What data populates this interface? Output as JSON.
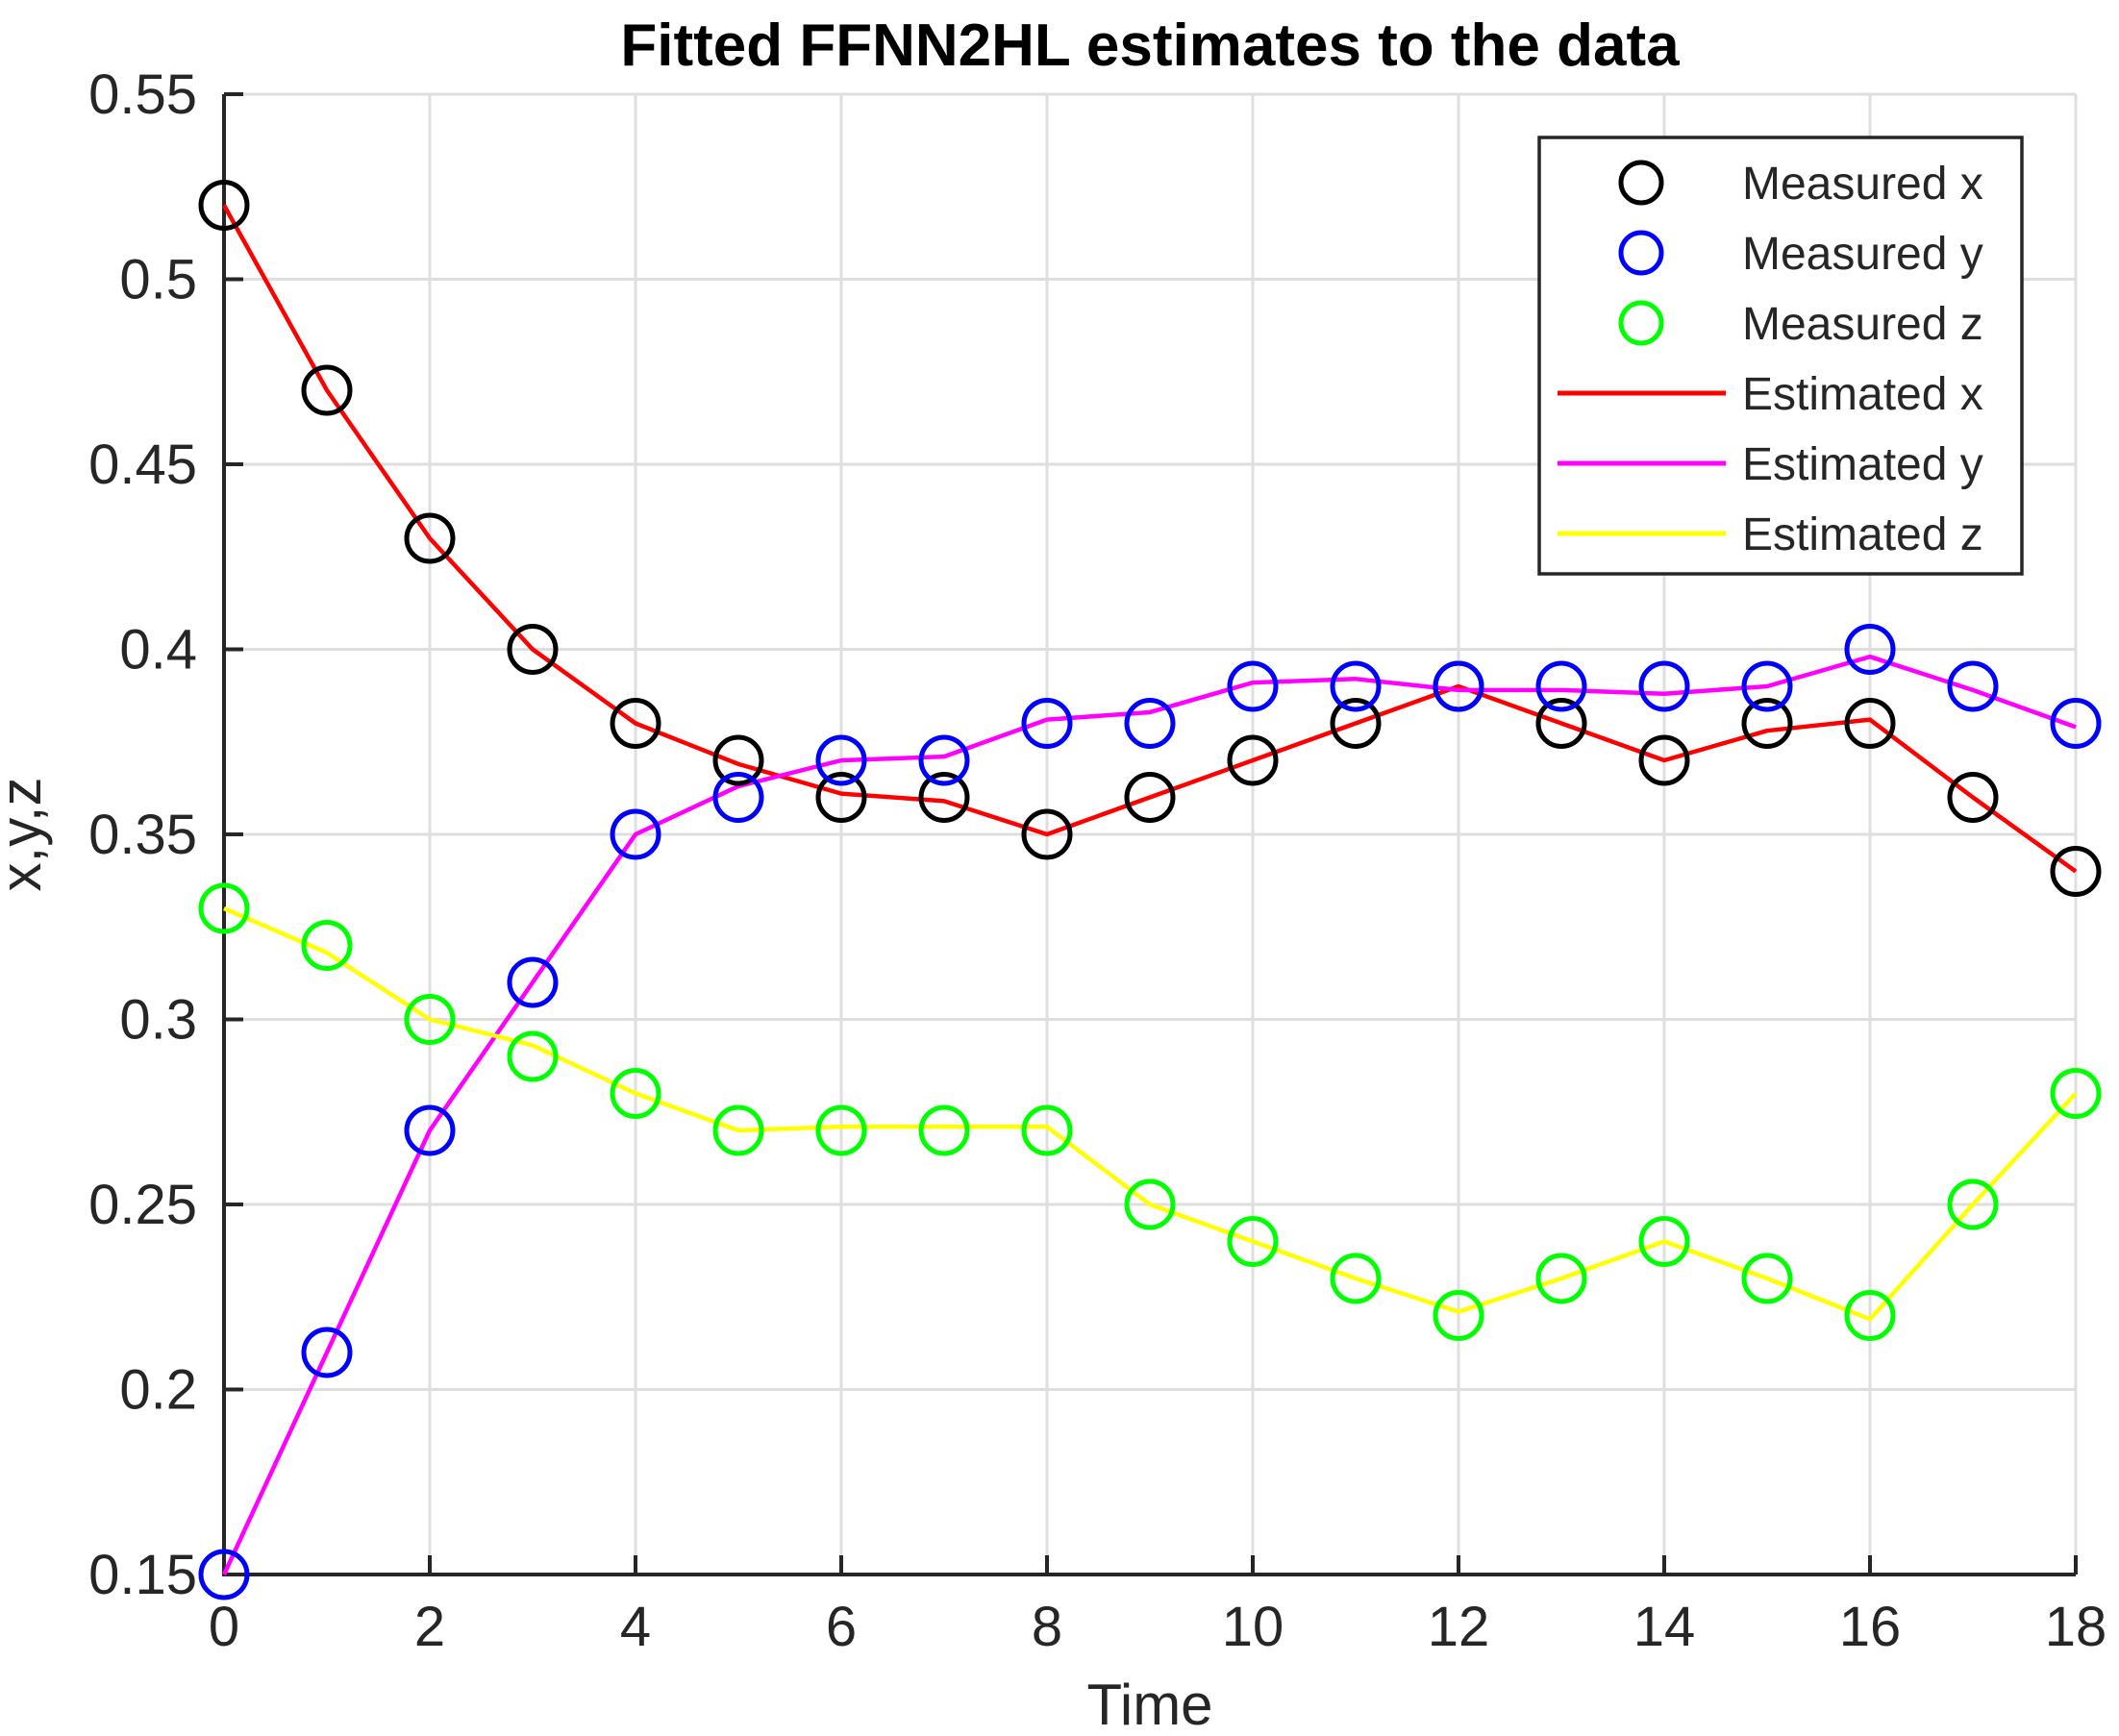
{
  "title": "Fitted FFNN2HL estimates to the data",
  "colors": {
    "background": "#FFFFFF",
    "grid": "#DEDEDE",
    "axis": "#262626",
    "text": "#262626",
    "measured_x": "#000000",
    "measured_y": "#0000FF",
    "measured_z": "#00FF00",
    "estimated_x": "#FF0000",
    "estimated_y": "#FF00FF",
    "estimated_z": "#FFFF00"
  },
  "legend": {
    "position": "northeast",
    "items": [
      {
        "label": "Measured x",
        "swatch": "circle",
        "color": "#000000"
      },
      {
        "label": "Measured y",
        "swatch": "circle",
        "color": "#0000FF"
      },
      {
        "label": "Measured z",
        "swatch": "circle",
        "color": "#00FF00"
      },
      {
        "label": "Estimated x",
        "swatch": "line",
        "color": "#FF0000"
      },
      {
        "label": "Estimated y",
        "swatch": "line",
        "color": "#FF00FF"
      },
      {
        "label": "Estimated z",
        "swatch": "line",
        "color": "#FFFF00"
      }
    ]
  },
  "chart_data": {
    "type": "line",
    "title": "Fitted FFNN2HL estimates to the data",
    "xlabel": "Time",
    "ylabel": "x,y,z",
    "xlim": [
      0,
      18
    ],
    "ylim": [
      0.15,
      0.55
    ],
    "grid": true,
    "legend_position": "northeast",
    "x_ticks": [
      0,
      2,
      4,
      6,
      8,
      10,
      12,
      14,
      16,
      18
    ],
    "y_ticks": [
      0.15,
      0.2,
      0.25,
      0.3,
      0.35,
      0.4,
      0.45,
      0.5,
      0.55
    ],
    "y_tick_labels": [
      "0.15",
      "0.2",
      "0.25",
      "0.3",
      "0.35",
      "0.4",
      "0.45",
      "0.5",
      "0.55"
    ],
    "x": [
      0,
      1,
      2,
      3,
      4,
      5,
      6,
      7,
      8,
      9,
      10,
      11,
      12,
      13,
      14,
      15,
      16,
      17,
      18
    ],
    "series": [
      {
        "name": "Measured x",
        "style": "scatter",
        "marker": "circle",
        "color": "#000000",
        "values": [
          0.52,
          0.47,
          0.43,
          0.4,
          0.38,
          0.37,
          0.36,
          0.36,
          0.35,
          0.36,
          0.37,
          0.38,
          0.39,
          0.38,
          0.37,
          0.38,
          0.38,
          0.36,
          0.34
        ]
      },
      {
        "name": "Measured y",
        "style": "scatter",
        "marker": "circle",
        "color": "#0000FF",
        "values": [
          0.15,
          0.21,
          0.27,
          0.31,
          0.35,
          0.36,
          0.37,
          0.37,
          0.38,
          0.38,
          0.39,
          0.39,
          0.39,
          0.39,
          0.39,
          0.39,
          0.4,
          0.39,
          0.38
        ]
      },
      {
        "name": "Measured z",
        "style": "scatter",
        "marker": "circle",
        "color": "#00FF00",
        "values": [
          0.33,
          0.32,
          0.3,
          0.29,
          0.28,
          0.27,
          0.27,
          0.27,
          0.27,
          0.25,
          0.24,
          0.23,
          0.22,
          0.23,
          0.24,
          0.23,
          0.22,
          0.25,
          0.28
        ]
      },
      {
        "name": "Estimated x",
        "style": "line",
        "color": "#FF0000",
        "values": [
          0.52,
          0.47,
          0.43,
          0.4,
          0.38,
          0.369,
          0.361,
          0.359,
          0.35,
          0.36,
          0.37,
          0.38,
          0.39,
          0.38,
          0.37,
          0.378,
          0.381,
          0.36,
          0.34
        ]
      },
      {
        "name": "Estimated y",
        "style": "line",
        "color": "#FF00FF",
        "values": [
          0.15,
          0.21,
          0.27,
          0.31,
          0.35,
          0.363,
          0.37,
          0.371,
          0.381,
          0.383,
          0.391,
          0.392,
          0.389,
          0.389,
          0.388,
          0.39,
          0.398,
          0.389,
          0.379
        ]
      },
      {
        "name": "Estimated z",
        "style": "line",
        "color": "#FFFF00",
        "values": [
          0.33,
          0.318,
          0.3,
          0.293,
          0.28,
          0.27,
          0.271,
          0.271,
          0.271,
          0.25,
          0.24,
          0.23,
          0.221,
          0.23,
          0.24,
          0.23,
          0.219,
          0.25,
          0.28
        ]
      }
    ]
  }
}
